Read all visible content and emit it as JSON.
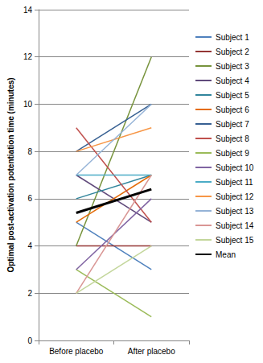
{
  "chart_data": {
    "type": "line",
    "y_label": "Optimal post-activation potentiation time (minutes)",
    "categories": [
      "Before placebo",
      "After placebo"
    ],
    "series": [
      {
        "name": "Subject 1",
        "color": "#4f81bd",
        "values": [
          5,
          3
        ]
      },
      {
        "name": "Subject 2",
        "color": "#943634",
        "values": [
          4,
          4
        ]
      },
      {
        "name": "Subject 3",
        "color": "#77933c",
        "values": [
          4,
          12
        ]
      },
      {
        "name": "Subject 4",
        "color": "#604a7b",
        "values": [
          7,
          5
        ]
      },
      {
        "name": "Subject 5",
        "color": "#31859c",
        "values": [
          6,
          7
        ]
      },
      {
        "name": "Subject 6",
        "color": "#e46c0a",
        "values": [
          5,
          7
        ]
      },
      {
        "name": "Subject 7",
        "color": "#376092",
        "values": [
          8,
          10
        ]
      },
      {
        "name": "Subject 8",
        "color": "#c0504d",
        "values": [
          9,
          5
        ]
      },
      {
        "name": "Subject 9",
        "color": "#9bbb59",
        "values": [
          3,
          1
        ]
      },
      {
        "name": "Subject 10",
        "color": "#8064a2",
        "values": [
          3,
          6
        ]
      },
      {
        "name": "Subject 11",
        "color": "#4bacc6",
        "values": [
          7,
          7
        ]
      },
      {
        "name": "Subject 12",
        "color": "#f79646",
        "values": [
          8,
          9
        ]
      },
      {
        "name": "Subject 13",
        "color": "#95b3d7",
        "values": [
          7,
          10
        ]
      },
      {
        "name": "Subject 14",
        "color": "#d99694",
        "values": [
          2,
          7
        ]
      },
      {
        "name": "Subject 15",
        "color": "#c3d69b",
        "values": [
          2,
          4
        ]
      },
      {
        "name": "Mean",
        "color": "#000000",
        "values": [
          5.4,
          6.4
        ]
      }
    ],
    "ylim": [
      0,
      14
    ],
    "yticks": [
      0,
      2,
      4,
      6,
      8,
      10,
      12,
      14
    ],
    "grid": true,
    "legend": "right"
  }
}
